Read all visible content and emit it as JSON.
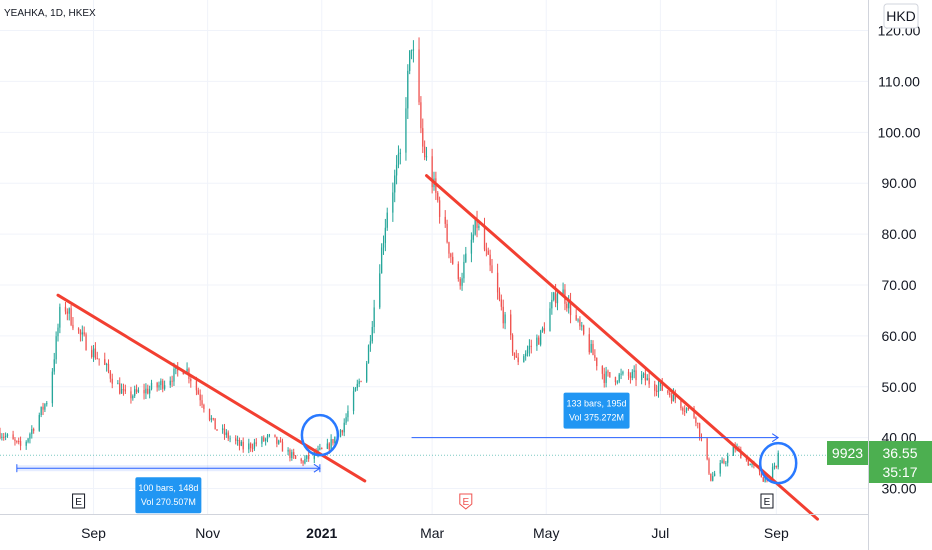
{
  "header": {
    "symbol_label": "YEAHKA, 1D, HKEX"
  },
  "currency": "HKD",
  "symbol_code": "9923",
  "price_tag": {
    "price": "36.55",
    "countdown": "35:17"
  },
  "colors": {
    "up": "#26a69a",
    "down": "#ef5350",
    "trendline": "#f23f31",
    "measure": "#2962ff",
    "measure_label_bg": "#2196f3",
    "circle": "#2979ff",
    "tag_green": "#4caf50",
    "grid": "#f0f3fa",
    "axis_line": "#d1d4dc"
  },
  "measurements": [
    {
      "bars": "100 bars, 148d",
      "vol": "Vol 270.507M"
    },
    {
      "bars": "133 bars, 195d",
      "vol": "Vol 375.272M"
    }
  ],
  "earnings_marker": "E",
  "chart_data": {
    "type": "candlestick",
    "title": "",
    "ylim": [
      25,
      126
    ],
    "y_ticks": [
      "30.00",
      "40.00",
      "50.00",
      "60.00",
      "70.00",
      "80.00",
      "90.00",
      "100.00",
      "110.00",
      "120.00"
    ],
    "y_tick_values": [
      30,
      40,
      50,
      60,
      70,
      80,
      90,
      100,
      110,
      120
    ],
    "x_ticks": [
      "Sep",
      "Nov",
      "2021",
      "Mar",
      "May",
      "Jul",
      "Sep"
    ],
    "x_tick_dates": [
      "2020-09-01",
      "2020-11-01",
      "2021-01-01",
      "2021-03-01",
      "2021-05-01",
      "2021-07-01",
      "2021-09-01"
    ],
    "x_range": [
      "2020-07-13",
      "2021-10-20"
    ],
    "key_prices": [
      {
        "date": "2020-07-13",
        "price": 41
      },
      {
        "date": "2020-07-25",
        "price": 38
      },
      {
        "date": "2020-08-08",
        "price": 48
      },
      {
        "date": "2020-08-15",
        "price": 67
      },
      {
        "date": "2020-08-25",
        "price": 60
      },
      {
        "date": "2020-09-05",
        "price": 55
      },
      {
        "date": "2020-09-18",
        "price": 48
      },
      {
        "date": "2020-10-05",
        "price": 50
      },
      {
        "date": "2020-10-20",
        "price": 54
      },
      {
        "date": "2020-11-05",
        "price": 42
      },
      {
        "date": "2020-11-20",
        "price": 38
      },
      {
        "date": "2020-12-05",
        "price": 40
      },
      {
        "date": "2020-12-20",
        "price": 35
      },
      {
        "date": "2021-01-04",
        "price": 38
      },
      {
        "date": "2021-01-12",
        "price": 42
      },
      {
        "date": "2021-01-25",
        "price": 55
      },
      {
        "date": "2021-02-05",
        "price": 85
      },
      {
        "date": "2021-02-12",
        "price": 95
      },
      {
        "date": "2021-02-18",
        "price": 118
      },
      {
        "date": "2021-02-24",
        "price": 97
      },
      {
        "date": "2021-03-05",
        "price": 85
      },
      {
        "date": "2021-03-15",
        "price": 70
      },
      {
        "date": "2021-03-25",
        "price": 82
      },
      {
        "date": "2021-04-08",
        "price": 64
      },
      {
        "date": "2021-04-15",
        "price": 55
      },
      {
        "date": "2021-04-28",
        "price": 60
      },
      {
        "date": "2021-05-08",
        "price": 70
      },
      {
        "date": "2021-05-18",
        "price": 62
      },
      {
        "date": "2021-06-01",
        "price": 52
      },
      {
        "date": "2021-06-20",
        "price": 52
      },
      {
        "date": "2021-07-05",
        "price": 49
      },
      {
        "date": "2021-07-20",
        "price": 44
      },
      {
        "date": "2021-07-28",
        "price": 32
      },
      {
        "date": "2021-08-10",
        "price": 38
      },
      {
        "date": "2021-08-25",
        "price": 32
      },
      {
        "date": "2021-09-01",
        "price": 34
      },
      {
        "date": "2021-09-02",
        "price": 37
      }
    ],
    "trendlines": [
      {
        "from": {
          "date": "2020-08-13",
          "price": 68
        },
        "to": {
          "date": "2021-01-24",
          "price": 31.5
        }
      },
      {
        "from": {
          "date": "2021-02-26",
          "price": 91.5
        },
        "to": {
          "date": "2021-09-23",
          "price": 24
        }
      }
    ],
    "date_ranges": [
      {
        "from": {
          "date": "2020-07-22",
          "price": 34
        },
        "to": {
          "date": "2020-12-31",
          "price": 34
        }
      },
      {
        "from": {
          "date": "2021-02-18",
          "price": 40
        },
        "to": {
          "date": "2021-09-02",
          "price": 40
        }
      }
    ],
    "circles": [
      {
        "date": "2020-12-31",
        "price": 40.5
      },
      {
        "date": "2021-09-02",
        "price": 35
      }
    ],
    "earnings": [
      {
        "date": "2020-08-24"
      },
      {
        "date": "2021-03-19"
      },
      {
        "date": "2021-08-27"
      }
    ]
  }
}
